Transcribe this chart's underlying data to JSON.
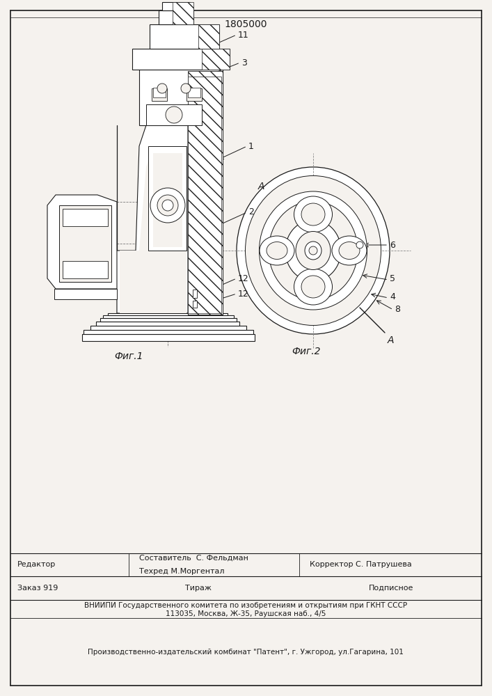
{
  "patent_number": "1805000",
  "fig1_label": "Фиг.1",
  "fig2_label": "Фиг.2",
  "editor_line": "Редактор",
  "composer_line": "Составитель  С. Фельдман",
  "techred_line": "Техред М.Моргентал",
  "corrector_line": "Корректор С. Патрушева",
  "order_line": "Заказ 919",
  "tirazh_line": "Тираж",
  "podpisnoe_line": "Подписное",
  "vniiipi_line": "ВНИИПИ Государственного комитета по изобретениям и открытиям при ГКНТ СССР",
  "address_line": "113035, Москва, Ж-35, Раушская наб., 4/5",
  "factory_line": "Производственно-издательский комбинат \"Патент\", г. Ужгород, ул.Гагарина, 101",
  "bg_color": "#f5f2ee",
  "line_color": "#1a1a1a"
}
